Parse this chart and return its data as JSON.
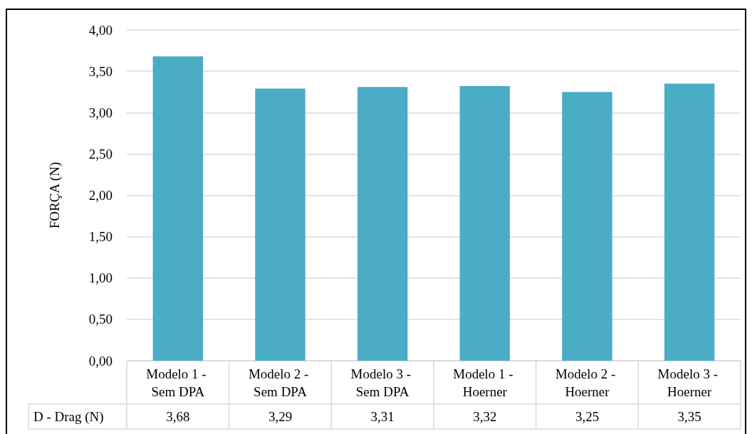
{
  "chart_data": {
    "type": "bar",
    "ylabel": "FORÇA (N)",
    "categories": [
      "Modelo 1 - Sem DPA",
      "Modelo 2 - Sem DPA",
      "Modelo 3 - Sem DPA",
      "Modelo 1 - Hoerner",
      "Modelo 2 - Hoerner",
      "Modelo 3 - Hoerner"
    ],
    "series": [
      {
        "name": "D - Drag (N)",
        "color": "#4bacc6",
        "values": [
          3.68,
          3.29,
          3.31,
          3.32,
          3.25,
          3.35
        ],
        "value_labels": [
          "3,68",
          "3,29",
          "3,31",
          "3,32",
          "3,25",
          "3,35"
        ]
      }
    ],
    "ylim": [
      0,
      4
    ],
    "yticks": [
      {
        "value": 0,
        "label": "0,00"
      },
      {
        "value": 0.5,
        "label": "0,50"
      },
      {
        "value": 1,
        "label": "1,00"
      },
      {
        "value": 1.5,
        "label": "1,50"
      },
      {
        "value": 2,
        "label": "2,00"
      },
      {
        "value": 2.5,
        "label": "2,50"
      },
      {
        "value": 3,
        "label": "3,00"
      },
      {
        "value": 3.5,
        "label": "3,50"
      },
      {
        "value": 4,
        "label": "4,00"
      }
    ],
    "grid": "y"
  }
}
